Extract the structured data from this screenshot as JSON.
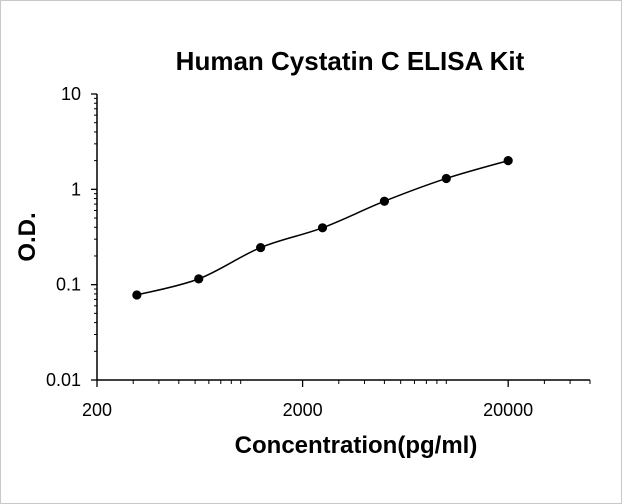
{
  "chart_data": {
    "type": "scatter",
    "title": "Human Cystatin C ELISA Kit",
    "xlabel": "Concentration(pg/ml)",
    "ylabel": "O.D.",
    "x_scale": "log",
    "y_scale": "log",
    "xlim": [
      200,
      50000
    ],
    "ylim": [
      0.01,
      10
    ],
    "x_ticks": [
      "200",
      "2000",
      "20000"
    ],
    "y_ticks": [
      "10",
      "1",
      "0.1",
      "0.01"
    ],
    "grid": false,
    "legend": "none",
    "series": [
      {
        "x": [
          312.5,
          625,
          1250,
          2500,
          5000,
          10000,
          20000
        ],
        "y": [
          0.078,
          0.115,
          0.245,
          0.395,
          0.75,
          1.3,
          2.0
        ],
        "marker": "circle",
        "fit_line": true
      }
    ],
    "colors": {
      "marker": "#000000",
      "line": "#000000",
      "axis": "#000000"
    }
  }
}
